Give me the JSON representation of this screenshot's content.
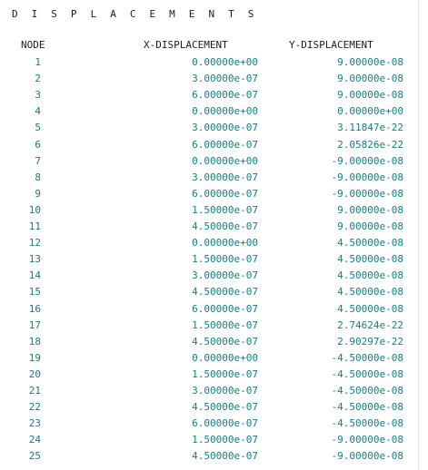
{
  "title": "D I S P L A C E M E N T S",
  "columns": {
    "node": "NODE",
    "x": "X-DISPLACEMENT",
    "y": "Y-DISPLACEMENT"
  },
  "rows": [
    {
      "node": "1",
      "x": "0.00000e+00",
      "y": "9.00000e-08"
    },
    {
      "node": "2",
      "x": "3.00000e-07",
      "y": "9.00000e-08"
    },
    {
      "node": "3",
      "x": "6.00000e-07",
      "y": "9.00000e-08"
    },
    {
      "node": "4",
      "x": "0.00000e+00",
      "y": "0.00000e+00"
    },
    {
      "node": "5",
      "x": "3.00000e-07",
      "y": "3.11847e-22"
    },
    {
      "node": "6",
      "x": "6.00000e-07",
      "y": "2.05826e-22"
    },
    {
      "node": "7",
      "x": "0.00000e+00",
      "y": "-9.00000e-08"
    },
    {
      "node": "8",
      "x": "3.00000e-07",
      "y": "-9.00000e-08"
    },
    {
      "node": "9",
      "x": "6.00000e-07",
      "y": "-9.00000e-08"
    },
    {
      "node": "10",
      "x": "1.50000e-07",
      "y": "9.00000e-08"
    },
    {
      "node": "11",
      "x": "4.50000e-07",
      "y": "9.00000e-08"
    },
    {
      "node": "12",
      "x": "0.00000e+00",
      "y": "4.50000e-08"
    },
    {
      "node": "13",
      "x": "1.50000e-07",
      "y": "4.50000e-08"
    },
    {
      "node": "14",
      "x": "3.00000e-07",
      "y": "4.50000e-08"
    },
    {
      "node": "15",
      "x": "4.50000e-07",
      "y": "4.50000e-08"
    },
    {
      "node": "16",
      "x": "6.00000e-07",
      "y": "4.50000e-08"
    },
    {
      "node": "17",
      "x": "1.50000e-07",
      "y": "2.74624e-22"
    },
    {
      "node": "18",
      "x": "4.50000e-07",
      "y": "2.90297e-22"
    },
    {
      "node": "19",
      "x": "0.00000e+00",
      "y": "-4.50000e-08"
    },
    {
      "node": "20",
      "x": "1.50000e-07",
      "y": "-4.50000e-08"
    },
    {
      "node": "21",
      "x": "3.00000e-07",
      "y": "-4.50000e-08"
    },
    {
      "node": "22",
      "x": "4.50000e-07",
      "y": "-4.50000e-08"
    },
    {
      "node": "23",
      "x": "6.00000e-07",
      "y": "-4.50000e-08"
    },
    {
      "node": "24",
      "x": "1.50000e-07",
      "y": "-9.00000e-08"
    },
    {
      "node": "25",
      "x": "4.50000e-07",
      "y": "-9.00000e-08"
    }
  ]
}
